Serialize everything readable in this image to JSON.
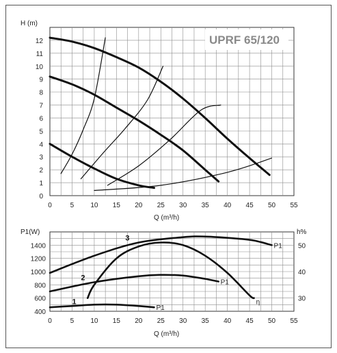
{
  "chart_data": [
    {
      "type": "line",
      "title": "UPRF 65/120",
      "ylabel": "H (m)",
      "xlabel": "Q (m³/h)",
      "xlim": [
        0,
        55
      ],
      "ylim": [
        0,
        13
      ],
      "x_ticks": [
        "0",
        "5",
        "10",
        "15",
        "20",
        "25",
        "30",
        "35",
        "40",
        "45",
        "50",
        "55"
      ],
      "y_ticks": [
        "0",
        "1",
        "2",
        "3",
        "4",
        "5",
        "6",
        "7",
        "8",
        "9",
        "10",
        "11",
        "12"
      ],
      "grid": true,
      "series": [
        {
          "role": "pump-curve",
          "speed": 3,
          "points": [
            [
              0,
              12.2
            ],
            [
              5,
              11.9
            ],
            [
              10,
              11.4
            ],
            [
              15,
              10.7
            ],
            [
              20,
              9.9
            ],
            [
              25,
              8.8
            ],
            [
              30,
              7.5
            ],
            [
              35,
              6.0
            ],
            [
              40,
              4.4
            ],
            [
              45,
              2.9
            ],
            [
              49.5,
              1.6
            ]
          ]
        },
        {
          "role": "pump-curve",
          "speed": 2,
          "points": [
            [
              0,
              9.2
            ],
            [
              5,
              8.6
            ],
            [
              10,
              7.8
            ],
            [
              15,
              6.8
            ],
            [
              20,
              5.8
            ],
            [
              25,
              4.7
            ],
            [
              30,
              3.5
            ],
            [
              35,
              2.0
            ],
            [
              38,
              1.1
            ]
          ]
        },
        {
          "role": "pump-curve",
          "speed": 1,
          "points": [
            [
              0,
              4.0
            ],
            [
              5,
              3.0
            ],
            [
              10,
              2.1
            ],
            [
              15,
              1.3
            ],
            [
              20,
              0.8
            ],
            [
              23.5,
              0.6
            ]
          ]
        },
        {
          "role": "system-curve",
          "points": [
            [
              2.5,
              1.7
            ],
            [
              5,
              3.2
            ],
            [
              7.5,
              5.1
            ],
            [
              10,
              7.5
            ],
            [
              12.5,
              12.2
            ]
          ]
        },
        {
          "role": "system-curve",
          "points": [
            [
              7,
              1.3
            ],
            [
              12,
              3.3
            ],
            [
              17,
              5.2
            ],
            [
              22,
              7.4
            ],
            [
              25.5,
              10.0
            ]
          ]
        },
        {
          "role": "system-curve",
          "points": [
            [
              13,
              0.8
            ],
            [
              20,
              2.3
            ],
            [
              27,
              4.3
            ],
            [
              34,
              6.6
            ],
            [
              38.5,
              7.0
            ]
          ]
        },
        {
          "role": "system-curve",
          "points": [
            [
              10,
              0.4
            ],
            [
              25,
              0.8
            ],
            [
              40,
              1.8
            ],
            [
              50,
              2.9
            ]
          ]
        }
      ]
    },
    {
      "type": "line",
      "ylabel": "P1(W)",
      "y2label": "h%",
      "xlabel": "Q (m³/h)",
      "xlim": [
        0,
        55
      ],
      "ylim": [
        400,
        1600
      ],
      "y2lim": [
        25,
        55
      ],
      "x_ticks": [
        "0",
        "5",
        "10",
        "15",
        "20",
        "25",
        "30",
        "35",
        "40",
        "45",
        "50",
        "55"
      ],
      "y_ticks": [
        "400",
        "600",
        "800",
        "1000",
        "1200",
        "1400"
      ],
      "y2_ticks": [
        "30",
        "40",
        "50"
      ],
      "grid": true,
      "series": [
        {
          "role": "power",
          "curve_label": "3",
          "end_label": "P1",
          "points": [
            [
              0,
              980
            ],
            [
              10,
              1240
            ],
            [
              20,
              1440
            ],
            [
              30,
              1520
            ],
            [
              35,
              1530
            ],
            [
              42,
              1500
            ],
            [
              46,
              1470
            ],
            [
              50,
              1400
            ]
          ]
        },
        {
          "role": "power",
          "curve_label": "2",
          "end_label": "P1",
          "points": [
            [
              0,
              700
            ],
            [
              10,
              840
            ],
            [
              20,
              930
            ],
            [
              25,
              950
            ],
            [
              30,
              940
            ],
            [
              35,
              890
            ],
            [
              38,
              850
            ]
          ]
        },
        {
          "role": "power",
          "curve_label": "1",
          "end_label": "P1",
          "points": [
            [
              0,
              460
            ],
            [
              5,
              480
            ],
            [
              10,
              500
            ],
            [
              15,
              500
            ],
            [
              20,
              480
            ],
            [
              23.5,
              460
            ]
          ]
        },
        {
          "role": "efficiency",
          "end_label": "η",
          "axis": "y2",
          "points": [
            [
              8.5,
              30
            ],
            [
              10,
              35
            ],
            [
              15,
              45
            ],
            [
              20,
              49.5
            ],
            [
              25,
              51
            ],
            [
              30,
              50
            ],
            [
              35,
              46
            ],
            [
              40,
              39.5
            ],
            [
              45,
              31
            ],
            [
              46,
              30
            ]
          ]
        }
      ]
    }
  ]
}
